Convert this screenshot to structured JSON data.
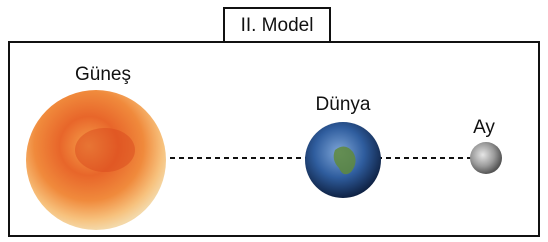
{
  "title": "II. Model",
  "nodes": [
    {
      "label": "Güneş"
    },
    {
      "label": "Dünya"
    },
    {
      "label": "Ay"
    }
  ]
}
